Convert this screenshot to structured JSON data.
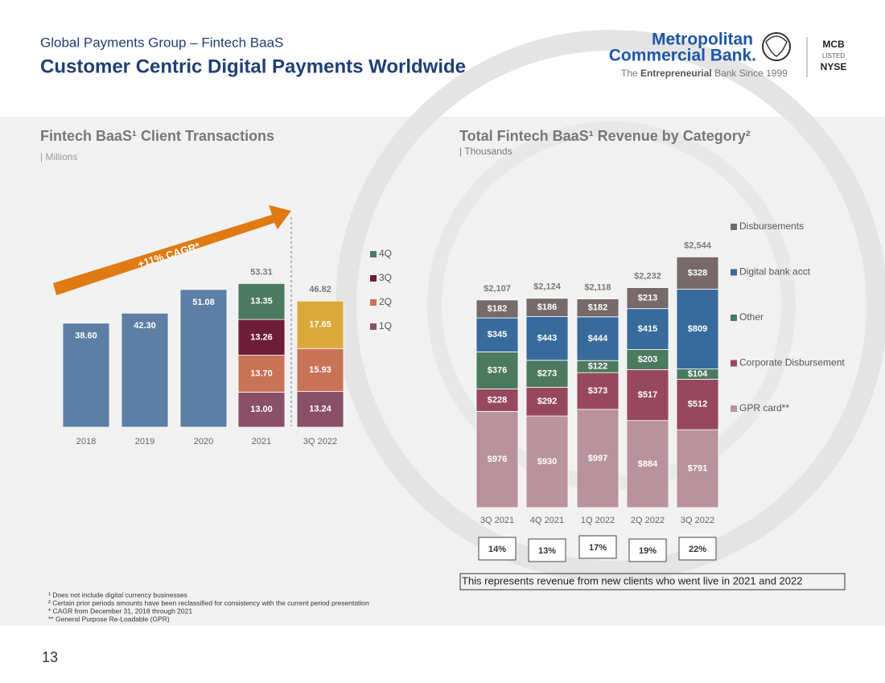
{
  "header": {
    "subtitle": "Global Payments Group – Fintech BaaS",
    "title": "Customer Centric Digital Payments Worldwide"
  },
  "logo": {
    "name_line1": "Metropolitan",
    "name_line2": "Commercial Bank.",
    "tagline_pre": "The",
    "tagline_bold": "Entrepreneurial",
    "tagline_post": "Bank Since 1999",
    "ticker": "MCB",
    "listed": "LISTED",
    "exchange": "NYSE"
  },
  "chart_data": [
    {
      "type": "stacked-bar",
      "title": "Fintech BaaS¹ Client Transactions",
      "unit": "| Millions",
      "annotation": "+11% CAGR*",
      "categories": [
        "2018",
        "2019",
        "2020",
        "2021",
        "3Q 2022"
      ],
      "ylim": [
        0,
        60
      ],
      "series": [
        {
          "color": "#5d7fa6",
          "values": [
            38.6,
            42.3,
            51.08,
            null,
            null
          ],
          "value_labels": [
            "38.60",
            "42.30",
            "51.08",
            null,
            null
          ]
        },
        {
          "name": "1Q",
          "color": "#8a5068",
          "values": [
            null,
            null,
            null,
            13.0,
            13.24
          ],
          "value_labels": [
            null,
            null,
            null,
            "13.00",
            "13.24"
          ]
        },
        {
          "name": "2Q",
          "color": "#c87356",
          "values": [
            null,
            null,
            null,
            13.7,
            15.93
          ],
          "value_labels": [
            null,
            null,
            null,
            "13.70",
            "15.93"
          ]
        },
        {
          "name": "3Q",
          "color": "#6e1d38",
          "colors": [
            "#6e1d38",
            "#6e1d38",
            "#6e1d38",
            "#6e1d38",
            "#dba83c"
          ],
          "values": [
            null,
            null,
            null,
            13.26,
            17.65
          ]
        },
        {
          "name": "4Q",
          "color": "#4d7a62",
          "values": [
            null,
            null,
            null,
            13.35,
            null
          ]
        }
      ],
      "totals": [
        null,
        null,
        null,
        53.31,
        46.82
      ]
    },
    {
      "type": "stacked-bar",
      "title": "Total Fintech BaaS¹ Revenue by Category²",
      "unit": "| Thousands",
      "categories": [
        "3Q 2021",
        "4Q 2021",
        "1Q 2022",
        "2Q 2022",
        "3Q 2022"
      ],
      "ylim": [
        0,
        2800
      ],
      "series": [
        {
          "name": "GPR card**",
          "color": "#b8929c",
          "values": [
            976,
            930,
            997,
            884,
            791
          ],
          "value_labels": [
            "$976",
            "$930",
            "$997",
            "$884",
            "$791"
          ]
        },
        {
          "name": "Corporate Disbursement",
          "color": "#97485f",
          "values": [
            228,
            292,
            373,
            517,
            512
          ],
          "value_labels": [
            "$228",
            "$292",
            "$373",
            "$517",
            "$512"
          ]
        },
        {
          "name": "Other",
          "color": "#4b7a5f",
          "values": [
            376,
            273,
            122,
            203,
            104
          ],
          "value_labels": [
            "$376",
            "$273",
            "$122",
            "$203",
            "$104"
          ]
        },
        {
          "name": "Digital bank acct",
          "color": "#386b9c",
          "values": [
            345,
            443,
            444,
            415,
            809
          ],
          "value_labels": [
            "$345",
            "$443",
            "$444",
            "$415",
            "$809"
          ]
        },
        {
          "name": "Disbursements",
          "color": "#766a6b",
          "values": [
            182,
            186,
            182,
            213,
            328
          ],
          "value_labels": [
            "$182",
            "$186",
            "$182",
            "$213",
            "$328"
          ]
        }
      ],
      "totals": [
        2107,
        2124,
        2118,
        2232,
        2544
      ],
      "totals_labels": [
        "$2,107",
        "$2,124",
        "$2,118",
        "$2,232",
        "$2,544"
      ],
      "new_client_share": {
        "values": [
          14,
          13,
          17,
          19,
          22
        ],
        "value_labels": [
          "14%",
          "13%",
          "17%",
          "19%",
          "22%"
        ]
      },
      "note": "This represents revenue from new clients who went live in 2021 and 2022"
    }
  ],
  "footnotes": [
    "¹ Does not include digital currency businesses",
    "² Certain prior periods amounts have been reclassified for consistency with the current period presentation",
    "* CAGR from December 31, 2018 through 2021",
    "** General Purpose Re-Loadable (GPR)"
  ],
  "page_number": "13"
}
